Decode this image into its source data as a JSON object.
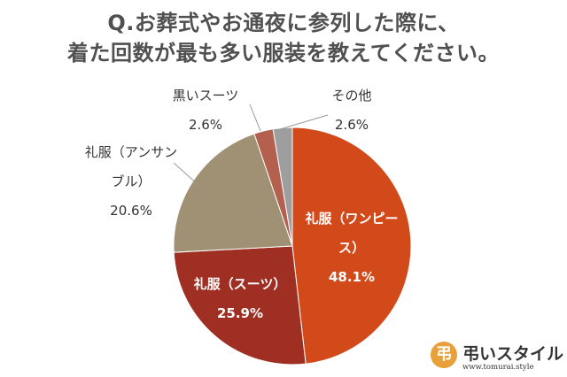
{
  "chart_data": {
    "type": "pie",
    "title_lines": [
      "Q.お葬式やお通夜に参列した際に、",
      "着た回数が最も多い服装を教えてください。"
    ],
    "slices": [
      {
        "label_lines": [
          "礼服（ワンピー",
          "ス）"
        ],
        "value": 48.1,
        "value_text": "48.1%",
        "color": "#d2491a"
      },
      {
        "label_lines": [
          "礼服（スーツ）"
        ],
        "value": 25.9,
        "value_text": "25.9%",
        "color": "#9e2f22"
      },
      {
        "label_lines": [
          "礼服（アンサン",
          "ブル）"
        ],
        "value": 20.6,
        "value_text": "20.6%",
        "color": "#a09174"
      },
      {
        "label_lines": [
          "黒いスーツ"
        ],
        "value": 2.6,
        "value_text": "2.6%",
        "color": "#b4604f"
      },
      {
        "label_lines": [
          "その他"
        ],
        "value": 2.6,
        "value_text": "2.6%",
        "color": "#9e9e9e"
      }
    ]
  },
  "logo": {
    "mark": "弔",
    "name": "弔いスタイル",
    "url": "www.tomurai.style"
  }
}
